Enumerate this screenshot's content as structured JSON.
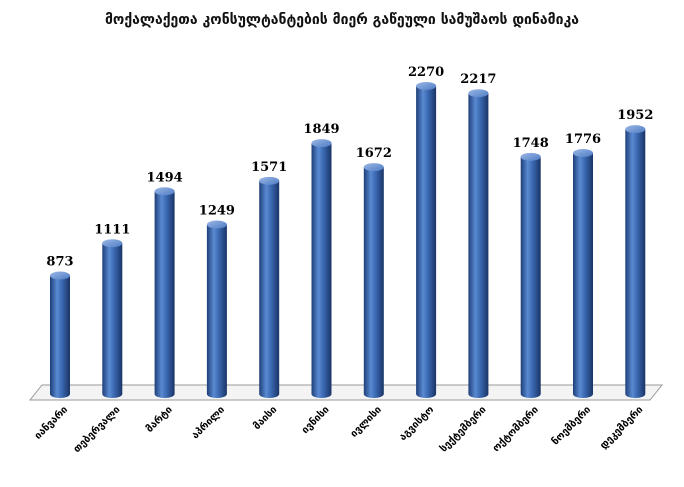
{
  "chart_data": {
    "type": "bar",
    "title": "მოქალაქეთა კონსულტანტების მიერ გაწეული სამუშაოს დინამიკა",
    "categories": [
      "იანვარი",
      "თებერვალი",
      "მარტი",
      "აპრილი",
      "მაისი",
      "ივნისი",
      "ივლისი",
      "აგვისტო",
      "სექტემბერი",
      "ოქტომბერი",
      "ნოემბერი",
      "დეკემბერი"
    ],
    "values": [
      873,
      1111,
      1494,
      1249,
      1571,
      1849,
      1672,
      2270,
      2217,
      1748,
      1776,
      1952
    ],
    "value_labels": [
      "873",
      "1111",
      "1494",
      "1249",
      "1571",
      "1849",
      "1672",
      "2270",
      "2217",
      "1748",
      "1776",
      "1952"
    ],
    "xlabel": "",
    "ylabel": "",
    "ylim": [
      0,
      2500
    ],
    "grid": false,
    "legend": "none",
    "style": "3d-cylinder",
    "bar_color": "#3A68B0"
  }
}
